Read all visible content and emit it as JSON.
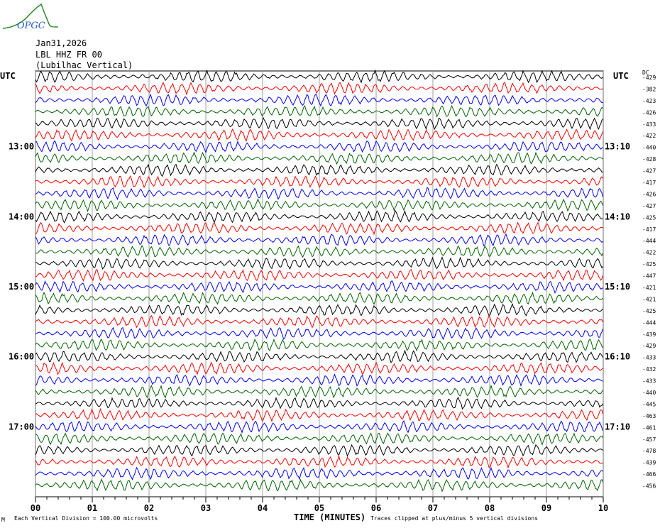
{
  "logo_text": "OPGC",
  "header": {
    "date": "Jan31,2026",
    "channel": "LBL HHZ FR 00",
    "station": "(Lubilhac Vertical)"
  },
  "utc_left": "UTC",
  "utc_right": "UTC",
  "dc_label": "DC",
  "footer": {
    "corner": "M",
    "division": "Each Vertical Division =  100.00 microvolts",
    "xlabel": "TIME (MINUTES)",
    "clip_note": "Traces clipped at plus/minus 5 vertical divisions"
  },
  "chart_data": {
    "type": "line",
    "title": "LBL HHZ FR 00 (Lubilhac Vertical) Jan31,2026",
    "xlabel": "TIME (MINUTES)",
    "x_ticks": [
      "00",
      "01",
      "02",
      "03",
      "04",
      "05",
      "06",
      "07",
      "08",
      "09",
      "10"
    ],
    "xlim": [
      0,
      10
    ],
    "left_labels": [
      {
        "row": 6,
        "text": "13:00"
      },
      {
        "row": 12,
        "text": "14:00"
      },
      {
        "row": 18,
        "text": "15:00"
      },
      {
        "row": 24,
        "text": "16:00"
      },
      {
        "row": 30,
        "text": "17:00"
      }
    ],
    "right_labels": [
      {
        "row": 6,
        "text": "13:10"
      },
      {
        "row": 12,
        "text": "14:10"
      },
      {
        "row": 18,
        "text": "15:10"
      },
      {
        "row": 24,
        "text": "16:10"
      },
      {
        "row": 30,
        "text": "17:10"
      }
    ],
    "trace_colors": [
      "#000000",
      "#ff0000",
      "#0000ff",
      "#006400"
    ],
    "dc_offsets": [
      "-429",
      "-382",
      "-423",
      "-426",
      "-433",
      "-422",
      "-440",
      "-428",
      "-427",
      "-417",
      "-426",
      "-427",
      "-425",
      "-417",
      "-444",
      "-422",
      "-425",
      "-447",
      "-421",
      "-421",
      "-425",
      "-444",
      "-439",
      "-429",
      "-433",
      "-432",
      "-433",
      "-440",
      "-445",
      "-463",
      "-461",
      "-457",
      "-478",
      "-439",
      "-466",
      "-456"
    ],
    "units_per_division": "100.00 microvolts"
  }
}
